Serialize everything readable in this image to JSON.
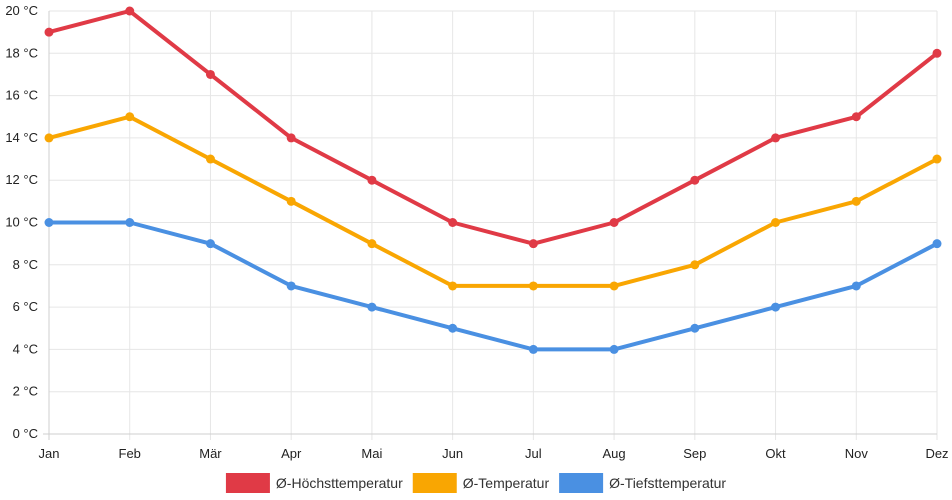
{
  "chart_data": {
    "type": "line",
    "categories": [
      "Jan",
      "Feb",
      "Mär",
      "Apr",
      "Mai",
      "Jun",
      "Jul",
      "Aug",
      "Sep",
      "Okt",
      "Nov",
      "Dez"
    ],
    "series": [
      {
        "name": "Ø-Höchsttemperatur",
        "color": "#e03a46",
        "values": [
          19,
          20,
          17,
          14,
          12,
          10,
          9,
          10,
          12,
          14,
          15,
          18
        ]
      },
      {
        "name": "Ø-Temperatur",
        "color": "#f9a602",
        "values": [
          14,
          15,
          13,
          11,
          9,
          7,
          7,
          7,
          8,
          10,
          11,
          13
        ]
      },
      {
        "name": "Ø-Tiefsttemperatur",
        "color": "#4a90e2",
        "values": [
          10,
          10,
          9,
          7,
          6,
          5,
          4,
          4,
          5,
          6,
          7,
          9
        ]
      }
    ],
    "ylim": [
      0,
      20
    ],
    "yticks": [
      0,
      2,
      4,
      6,
      8,
      10,
      12,
      14,
      16,
      18,
      20
    ],
    "yunit": "°C",
    "grid": true,
    "legend": "bottom-center"
  }
}
